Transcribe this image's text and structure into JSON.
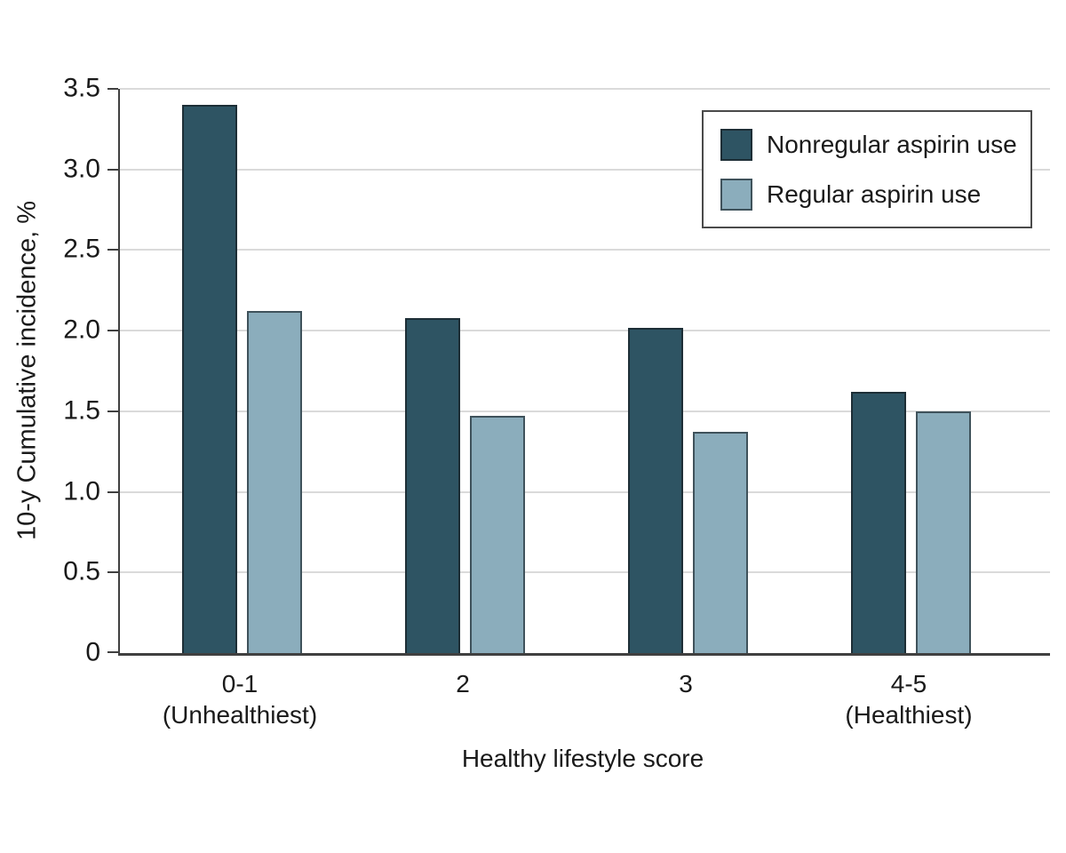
{
  "chart_data": {
    "type": "bar",
    "title": "",
    "xlabel": "Healthy lifestyle score",
    "ylabel": "10-y Cumulative incidence, %",
    "categories": [
      "0-1",
      "2",
      "3",
      "4-5"
    ],
    "category_sublabels": [
      "(Unhealthiest)",
      "",
      "",
      "(Healthiest)"
    ],
    "series": [
      {
        "name": "Nonregular aspirin use",
        "color": "#2e5463",
        "edge_color": "#1d2e36",
        "values": [
          3.4,
          2.08,
          2.02,
          1.62
        ]
      },
      {
        "name": "Regular aspirin use",
        "color": "#8badbc",
        "edge_color": "#3f525b",
        "values": [
          2.12,
          1.47,
          1.37,
          1.5
        ]
      }
    ],
    "ylim": [
      0,
      3.5
    ],
    "ytick_values": [
      0,
      0.5,
      1.0,
      1.5,
      2.0,
      2.5,
      3.0,
      3.5
    ],
    "ytick_labels": [
      "0",
      "0.5",
      "1.0",
      "1.5",
      "2.0",
      "2.5",
      "3.0",
      "3.5"
    ],
    "grid": true,
    "legend_position": "top-right"
  },
  "colors": {
    "axis": "#404040",
    "gridline": "#dadada",
    "text": "#1a1a1a",
    "background": "#ffffff"
  }
}
